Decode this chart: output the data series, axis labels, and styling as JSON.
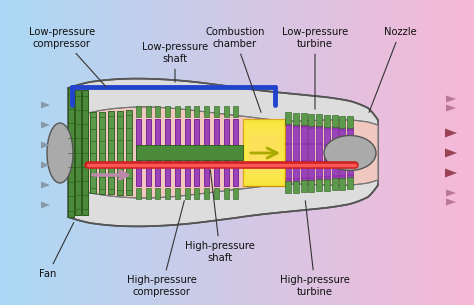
{
  "bg_blue": [
    0.67,
    0.85,
    0.96
  ],
  "bg_pink": [
    0.97,
    0.72,
    0.84
  ],
  "fan_green": "#4a8a3a",
  "fan_green_dark": "#2a5a1a",
  "lp_comp_green": "#5a9a4a",
  "purple": "#9944bb",
  "purple_dark": "#660088",
  "yellow": "#f0dd30",
  "yellow_dark": "#cc8800",
  "red_shaft": "#dd2222",
  "blue_shaft": "#2244cc",
  "nacelle_fill": "#dddddd",
  "nacelle_edge": "#555555",
  "spinner_fill": "#aaaaaa",
  "bullet_fill": "#aaaaaa",
  "inlet_arrow_color": "#8899aa",
  "bypass_arrow_color": "#bb88aa",
  "exhaust_arrow_color": "#994455",
  "exhaust_bypass_color": "#bb7799",
  "label_fontsize": 7.2,
  "text_color": "#111111",
  "labels": {
    "fan": "Fan",
    "hp_compressor": "High-pressure\ncompressor",
    "hp_turbine": "High-pressure\nturbine",
    "hp_shaft": "High-pressure\nshaft",
    "lp_compressor": "Low-pressure\ncompressor",
    "lp_shaft": "Low-pressure\nshaft",
    "combustion": "Combustion\nchamber",
    "lp_turbine": "Low-pressure\nturbine",
    "nozzle": "Nozzle"
  }
}
